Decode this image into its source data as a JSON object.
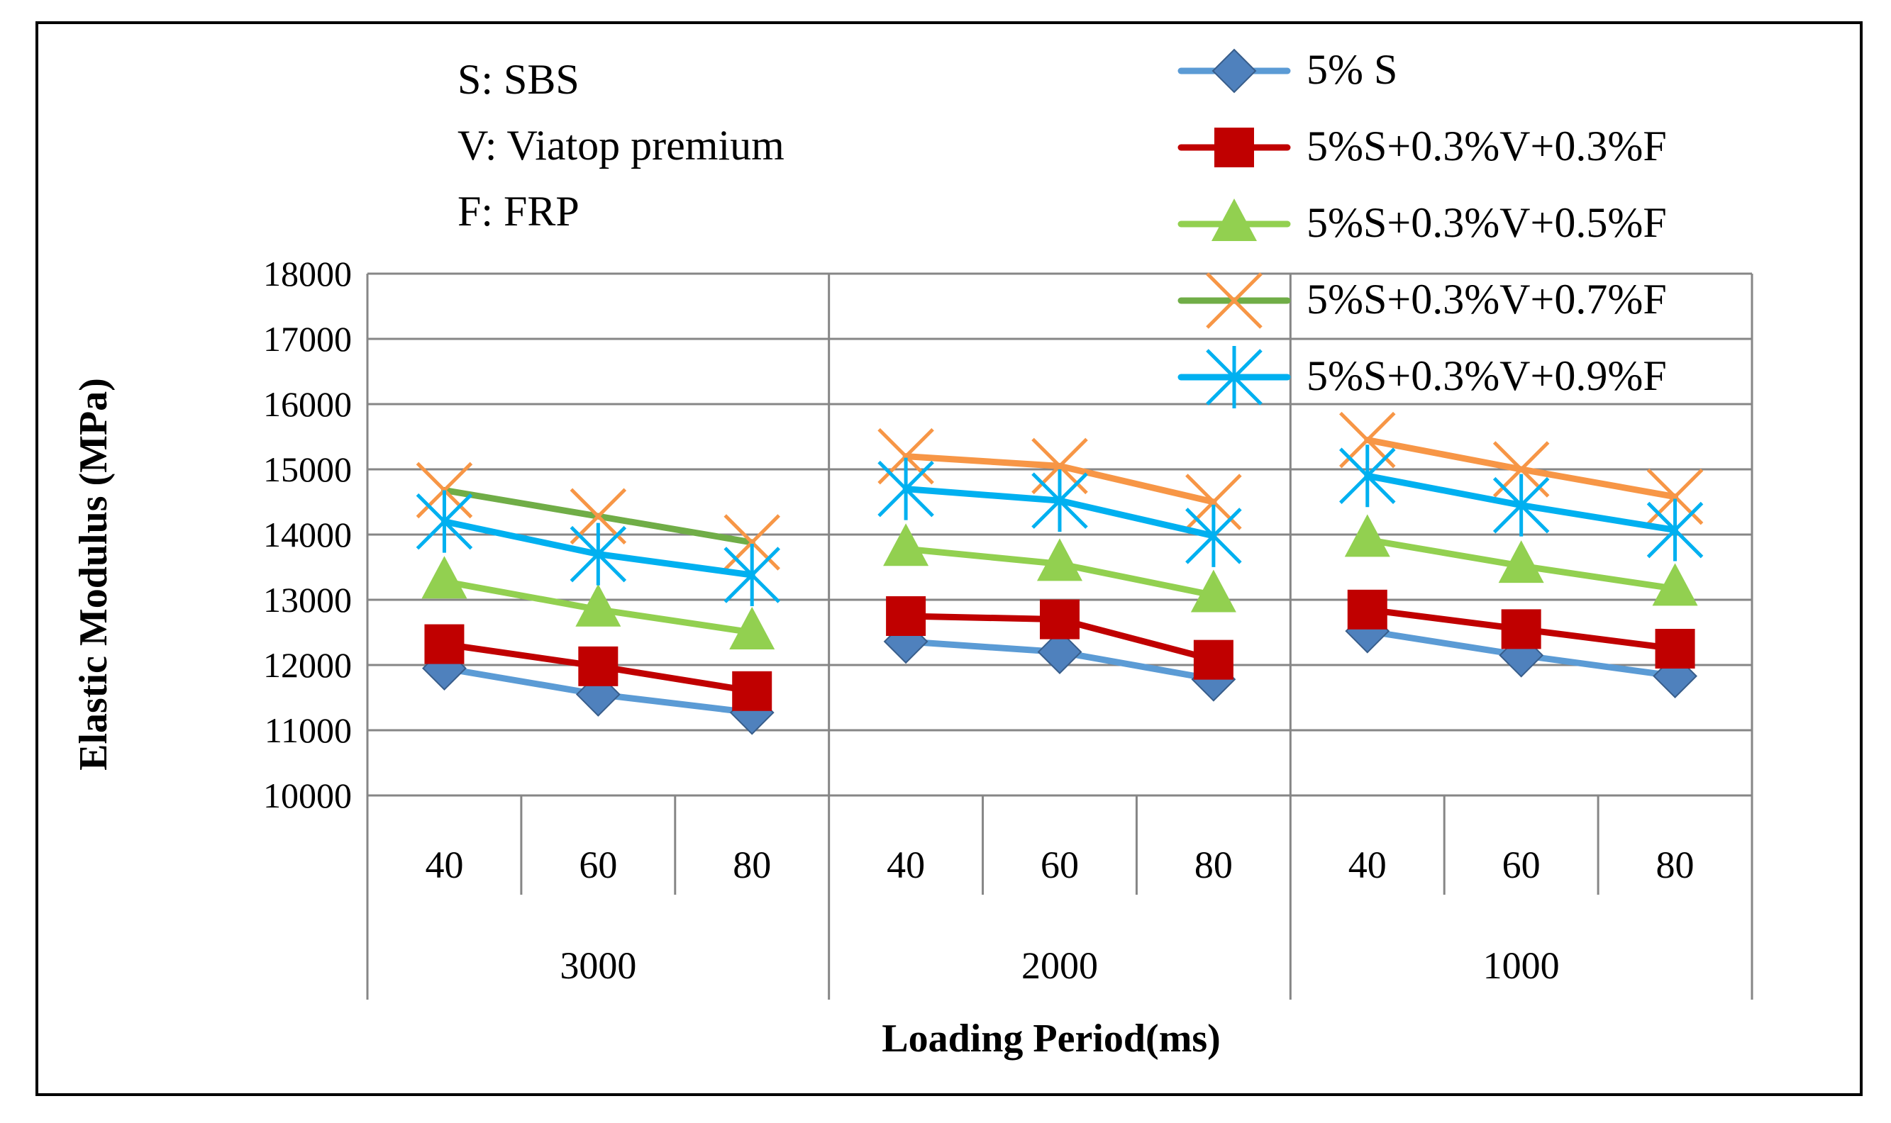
{
  "notes": [
    "S: SBS",
    "V: Viatop premium",
    "F: FRP"
  ],
  "chart_data": {
    "type": "line",
    "xlabel": "Loading Period(ms)",
    "ylabel": "Elastic Modulus (MPa)",
    "ylim": [
      10000,
      18000
    ],
    "yticks": [
      10000,
      11000,
      12000,
      13000,
      14000,
      15000,
      16000,
      17000,
      18000
    ],
    "grid": true,
    "legend_position": "top-right",
    "groups": [
      {
        "label": "3000",
        "categories": [
          "40",
          "60",
          "80"
        ]
      },
      {
        "label": "2000",
        "categories": [
          "40",
          "60",
          "80"
        ]
      },
      {
        "label": "1000",
        "categories": [
          "40",
          "60",
          "80"
        ]
      }
    ],
    "series": [
      {
        "name": "5% S",
        "color": "#5b9bd5",
        "marker": "diamond",
        "marker_color": "#4f81bd",
        "values": [
          [
            11950,
            11550,
            11270
          ],
          [
            12360,
            12200,
            11780
          ],
          [
            12520,
            12150,
            11830
          ]
        ]
      },
      {
        "name": "5%S+0.3%V+0.3%F",
        "color": "#c00000",
        "marker": "square",
        "marker_color": "#c00000",
        "values": [
          [
            12320,
            11980,
            11600
          ],
          [
            12750,
            12700,
            12080
          ],
          [
            12850,
            12550,
            12250
          ]
        ]
      },
      {
        "name": "5%S+0.3%V+0.5%F",
        "color": "#92d050",
        "marker": "triangle",
        "marker_color": "#92d050",
        "values": [
          [
            13280,
            12850,
            12500
          ],
          [
            13780,
            13550,
            13070
          ],
          [
            13920,
            13520,
            13170
          ]
        ]
      },
      {
        "name": "5%S+0.3%V+0.7%F",
        "color": "#70ad47",
        "segment_colors": [
          "#70ad47",
          "#f79646",
          "#f79646"
        ],
        "marker": "x",
        "marker_color": "#f79646",
        "values": [
          [
            14680,
            14280,
            13880
          ],
          [
            15200,
            15050,
            14500
          ],
          [
            15450,
            15000,
            14580
          ]
        ]
      },
      {
        "name": "5%S+0.3%V+0.9%F",
        "color": "#00b0f0",
        "marker": "star",
        "marker_color": "#00b0f0",
        "values": [
          [
            14200,
            13700,
            13380
          ],
          [
            14700,
            14520,
            13980
          ],
          [
            14900,
            14450,
            14070
          ]
        ]
      }
    ]
  }
}
